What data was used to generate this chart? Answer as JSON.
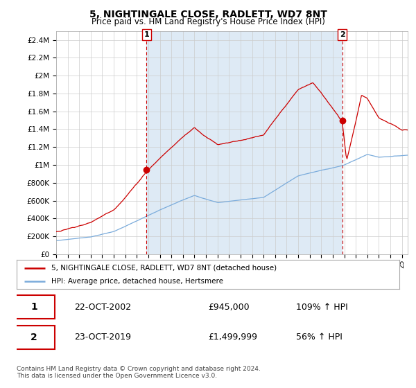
{
  "title": "5, NIGHTINGALE CLOSE, RADLETT, WD7 8NT",
  "subtitle": "Price paid vs. HM Land Registry's House Price Index (HPI)",
  "title_fontsize": 10,
  "subtitle_fontsize": 8.5,
  "ylim": [
    0,
    2500000
  ],
  "yticks": [
    0,
    200000,
    400000,
    600000,
    800000,
    1000000,
    1200000,
    1400000,
    1600000,
    1800000,
    2000000,
    2200000,
    2400000
  ],
  "ytick_labels": [
    "£0",
    "£200K",
    "£400K",
    "£600K",
    "£800K",
    "£1M",
    "£1.2M",
    "£1.4M",
    "£1.6M",
    "£1.8M",
    "£2M",
    "£2.2M",
    "£2.4M"
  ],
  "xlim_start": 1995.0,
  "xlim_end": 2025.5,
  "sale1_x": 2002.85,
  "sale1_y": 945000,
  "sale2_x": 2019.82,
  "sale2_y": 1499999,
  "vline1_x": 2002.85,
  "vline2_x": 2019.82,
  "sale_color": "#cc0000",
  "hpi_color": "#7aabdb",
  "vline_color": "#cc0000",
  "shade_color": "#deeaf5",
  "legend_sale_label": "5, NIGHTINGALE CLOSE, RADLETT, WD7 8NT (detached house)",
  "legend_hpi_label": "HPI: Average price, detached house, Hertsmere",
  "annotation1_label": "1",
  "annotation2_label": "2",
  "table_row1": [
    "1",
    "22-OCT-2002",
    "£945,000",
    "109% ↑ HPI"
  ],
  "table_row2": [
    "2",
    "23-OCT-2019",
    "£1,499,999",
    "56% ↑ HPI"
  ],
  "footer": "Contains HM Land Registry data © Crown copyright and database right 2024.\nThis data is licensed under the Open Government Licence v3.0.",
  "background_color": "#ffffff",
  "grid_color": "#cccccc"
}
